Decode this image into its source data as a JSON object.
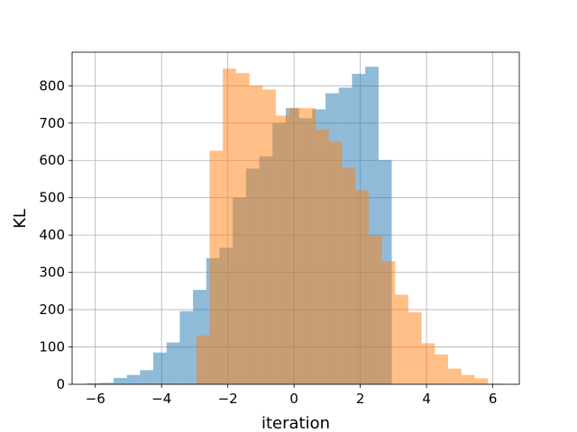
{
  "chart_data": {
    "type": "bar",
    "subtype": "overlapping histogram",
    "xlabel": "iteration",
    "ylabel": "KL",
    "xlim": [
      -6.7,
      6.8
    ],
    "ylim": [
      0,
      890
    ],
    "xticks": [
      -6,
      -4,
      -2,
      0,
      2,
      4,
      6
    ],
    "xtick_labels": [
      "−6",
      "−4",
      "−2",
      "0",
      "2",
      "4",
      "6"
    ],
    "yticks": [
      0,
      100,
      200,
      300,
      400,
      500,
      600,
      700,
      800
    ],
    "grid": true,
    "alpha": 0.5,
    "series": [
      {
        "color": "#1f77b4",
        "bins": [
          {
            "x0": -6.25,
            "x1": -5.85,
            "value": 3
          },
          {
            "x0": -5.85,
            "x1": -5.45,
            "value": 4
          },
          {
            "x0": -5.45,
            "x1": -5.05,
            "value": 17
          },
          {
            "x0": -5.05,
            "x1": -4.65,
            "value": 25
          },
          {
            "x0": -4.65,
            "x1": -4.25,
            "value": 38
          },
          {
            "x0": -4.25,
            "x1": -3.85,
            "value": 85
          },
          {
            "x0": -3.85,
            "x1": -3.45,
            "value": 112
          },
          {
            "x0": -3.45,
            "x1": -3.05,
            "value": 196
          },
          {
            "x0": -3.05,
            "x1": -2.65,
            "value": 253
          },
          {
            "x0": -2.65,
            "x1": -2.25,
            "value": 338
          },
          {
            "x0": -2.25,
            "x1": -1.85,
            "value": 366
          },
          {
            "x0": -1.85,
            "x1": -1.45,
            "value": 500
          },
          {
            "x0": -1.45,
            "x1": -1.05,
            "value": 578
          },
          {
            "x0": -1.05,
            "x1": -0.65,
            "value": 611
          },
          {
            "x0": -0.65,
            "x1": -0.25,
            "value": 700
          },
          {
            "x0": -0.25,
            "x1": 0.15,
            "value": 740
          },
          {
            "x0": 0.15,
            "x1": 0.55,
            "value": 713
          },
          {
            "x0": 0.55,
            "x1": 0.95,
            "value": 737
          },
          {
            "x0": 0.95,
            "x1": 1.35,
            "value": 780
          },
          {
            "x0": 1.35,
            "x1": 1.75,
            "value": 795
          },
          {
            "x0": 1.75,
            "x1": 2.15,
            "value": 832
          },
          {
            "x0": 2.15,
            "x1": 2.55,
            "value": 851
          },
          {
            "x0": 2.55,
            "x1": 2.95,
            "value": 601
          }
        ]
      },
      {
        "color": "#ff7f0e",
        "bins": [
          {
            "x0": -2.95,
            "x1": -2.55,
            "value": 131
          },
          {
            "x0": -2.55,
            "x1": -2.15,
            "value": 626
          },
          {
            "x0": -2.15,
            "x1": -1.75,
            "value": 846
          },
          {
            "x0": -1.75,
            "x1": -1.35,
            "value": 834
          },
          {
            "x0": -1.35,
            "x1": -0.95,
            "value": 800
          },
          {
            "x0": -0.95,
            "x1": -0.55,
            "value": 790
          },
          {
            "x0": -0.55,
            "x1": -0.15,
            "value": 720
          },
          {
            "x0": -0.15,
            "x1": 0.25,
            "value": 741
          },
          {
            "x0": 0.25,
            "x1": 0.65,
            "value": 740
          },
          {
            "x0": 0.65,
            "x1": 1.05,
            "value": 683
          },
          {
            "x0": 1.05,
            "x1": 1.45,
            "value": 651
          },
          {
            "x0": 1.45,
            "x1": 1.85,
            "value": 580
          },
          {
            "x0": 1.85,
            "x1": 2.25,
            "value": 520
          },
          {
            "x0": 2.25,
            "x1": 2.65,
            "value": 400
          },
          {
            "x0": 2.65,
            "x1": 3.05,
            "value": 330
          },
          {
            "x0": 3.05,
            "x1": 3.45,
            "value": 240
          },
          {
            "x0": 3.45,
            "x1": 3.85,
            "value": 193
          },
          {
            "x0": 3.85,
            "x1": 4.25,
            "value": 110
          },
          {
            "x0": 4.25,
            "x1": 4.65,
            "value": 80
          },
          {
            "x0": 4.65,
            "x1": 5.05,
            "value": 42
          },
          {
            "x0": 5.05,
            "x1": 5.45,
            "value": 25
          },
          {
            "x0": 5.45,
            "x1": 5.85,
            "value": 16
          },
          {
            "x0": 5.85,
            "x1": 6.25,
            "value": 2
          }
        ]
      }
    ]
  }
}
